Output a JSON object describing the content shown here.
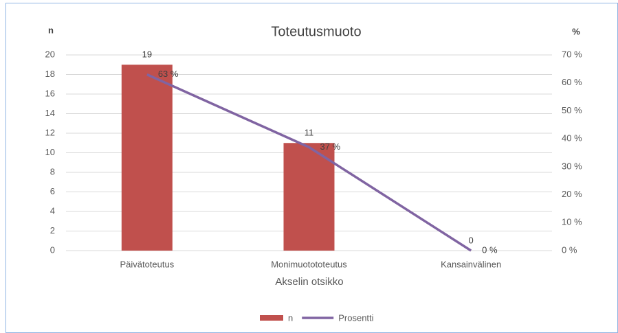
{
  "chart_data": {
    "type": "combo",
    "title": "Toteutusmuoto",
    "y_label": "n",
    "y2_label": "%",
    "x_label": "Akselin otsikko",
    "categories": [
      "Päivätoteutus",
      "Monimuotototeutus",
      "Kansainvälinen"
    ],
    "series": [
      {
        "name": "n",
        "type": "bar",
        "color": "#c0504d",
        "values": [
          19,
          11,
          0
        ]
      },
      {
        "name": "Prosentti",
        "type": "line",
        "axis": "y2",
        "color": "#8064a2",
        "values": [
          63,
          37,
          0
        ],
        "value_labels": [
          "63 %",
          "37 %",
          "0 %"
        ]
      }
    ],
    "ylim": [
      0,
      20
    ],
    "yticks": [
      0,
      2,
      4,
      6,
      8,
      10,
      12,
      14,
      16,
      18,
      20
    ],
    "y2lim": [
      0,
      70
    ],
    "y2ticks": [
      {
        "value": 0,
        "label": "0 %"
      },
      {
        "value": 10,
        "label": "10 %"
      },
      {
        "value": 20,
        "label": "20 %"
      },
      {
        "value": 30,
        "label": "30 %"
      },
      {
        "value": 40,
        "label": "40 %"
      },
      {
        "value": 50,
        "label": "50 %"
      },
      {
        "value": 60,
        "label": "60 %"
      },
      {
        "value": 70,
        "label": "70 %"
      }
    ],
    "grid": true,
    "legend": "bottom"
  }
}
